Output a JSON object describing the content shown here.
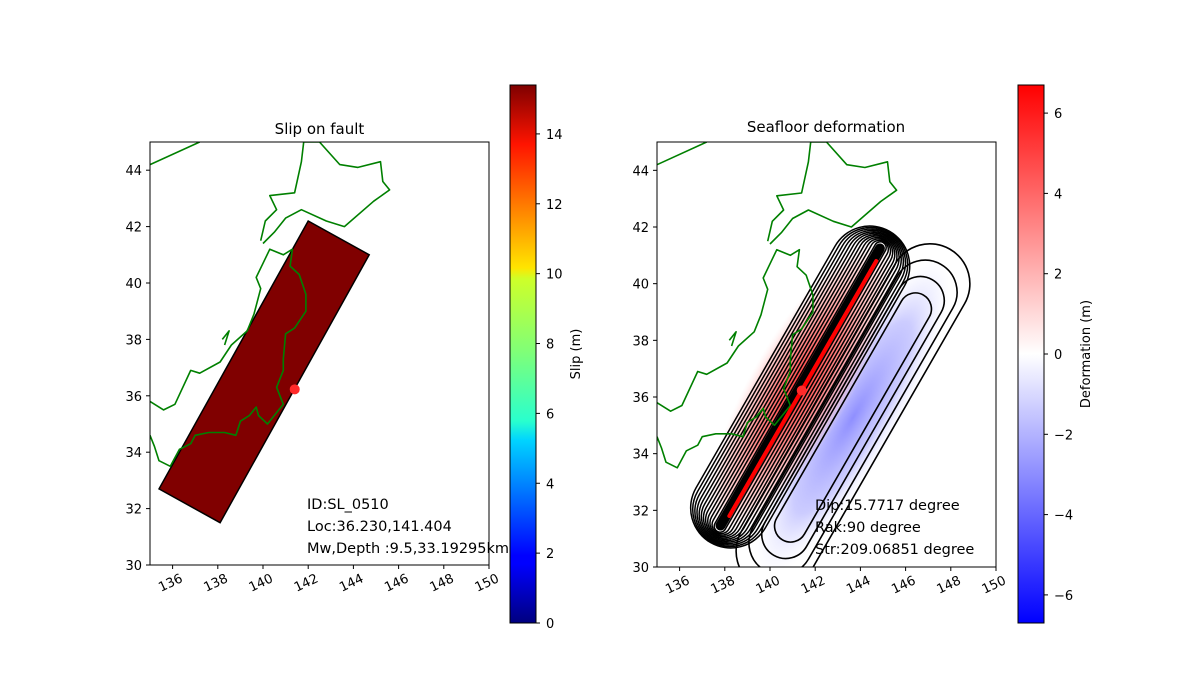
{
  "chart_data": [
    {
      "type": "heatmap",
      "title": "Slip on fault",
      "xlim": [
        135,
        150
      ],
      "ylim": [
        30,
        45
      ],
      "xticks": [
        136,
        138,
        140,
        142,
        144,
        146,
        148,
        150
      ],
      "yticks": [
        30,
        32,
        34,
        36,
        38,
        40,
        42,
        44
      ],
      "fault_polygon": [
        [
          135.4,
          32.7
        ],
        [
          138.1,
          31.5
        ],
        [
          144.7,
          41.0
        ],
        [
          142.0,
          42.2
        ]
      ],
      "slip_value_m": 15.4,
      "fault_color": "#800000",
      "epicenter": {
        "lon": 141.404,
        "lat": 36.23
      },
      "epicenter_color": "#ff2a2a",
      "coastline_color": "#008000",
      "annotations": [
        "ID:SL_0510",
        "Loc:36.230,141.404",
        "Mw,Depth :9.5,33.19295km"
      ],
      "colorbar": {
        "label": "Slip (m)",
        "min": 0,
        "max": 15.4,
        "ticks": [
          0,
          2,
          4,
          6,
          8,
          10,
          12,
          14
        ],
        "colormap": "jet"
      }
    },
    {
      "type": "heatmap",
      "title": "Seafloor deformation",
      "xlim": [
        135,
        150
      ],
      "ylim": [
        30,
        45
      ],
      "xticks": [
        136,
        138,
        140,
        142,
        144,
        146,
        148,
        150
      ],
      "yticks": [
        30,
        32,
        34,
        36,
        38,
        40,
        42,
        44
      ],
      "uplift_peak_m": 6.7,
      "subsidence_peak_m": -2.0,
      "fault_trace": [
        [
          138.2,
          31.8
        ],
        [
          144.7,
          40.8
        ]
      ],
      "fault_trace_color": "#ff0000",
      "epicenter": {
        "lon": 141.404,
        "lat": 36.23
      },
      "epicenter_color": "#ff2a2a",
      "coastline_color": "#008000",
      "annotations": [
        "Dip:15.7717 degree",
        "Rak:90 degree",
        "Str:209.06851 degree"
      ],
      "colorbar": {
        "label": "Deformation (m)",
        "min": -6.7,
        "max": 6.7,
        "ticks": [
          -6,
          -4,
          -2,
          0,
          2,
          4,
          6
        ],
        "colormap": "bwr"
      }
    }
  ]
}
